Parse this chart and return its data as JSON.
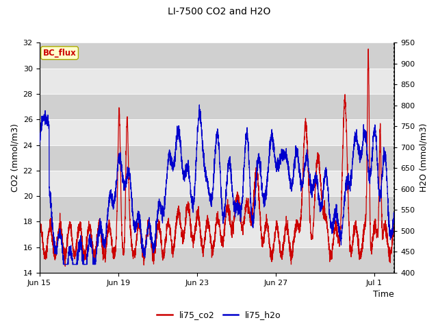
{
  "title": "LI-7500 CO2 and H2O",
  "xlabel": "Time",
  "ylabel_left": "CO2 (mmol/m3)",
  "ylabel_right": "H2O (mmol/m3)",
  "ylim_left": [
    14,
    32
  ],
  "ylim_right": [
    400,
    950
  ],
  "yticks_left": [
    14,
    16,
    18,
    20,
    22,
    24,
    26,
    28,
    30,
    32
  ],
  "yticks_right": [
    400,
    450,
    500,
    550,
    600,
    650,
    700,
    750,
    800,
    850,
    900,
    950
  ],
  "xtick_labels": [
    "Jun 15",
    "Jun 19",
    "Jun 23",
    "Jun 27",
    "Jul 1"
  ],
  "xtick_positions": [
    0,
    4,
    8,
    12,
    17
  ],
  "xlim": [
    0,
    18
  ],
  "plot_bg_color": "#e8e8e8",
  "stripe_dark": "#d0d0d0",
  "stripe_light": "#e8e8e8",
  "line_color_co2": "#cc0000",
  "line_color_h2o": "#0000cc",
  "legend_label_co2": "li75_co2",
  "legend_label_h2o": "li75_h2o",
  "annotation_text": "BC_flux",
  "annotation_color": "#cc0000",
  "annotation_bg": "#ffffcc",
  "annotation_edge": "#aaaa00",
  "title_fontsize": 10,
  "axis_fontsize": 9,
  "tick_fontsize": 8,
  "legend_fontsize": 9,
  "linewidth": 0.9
}
